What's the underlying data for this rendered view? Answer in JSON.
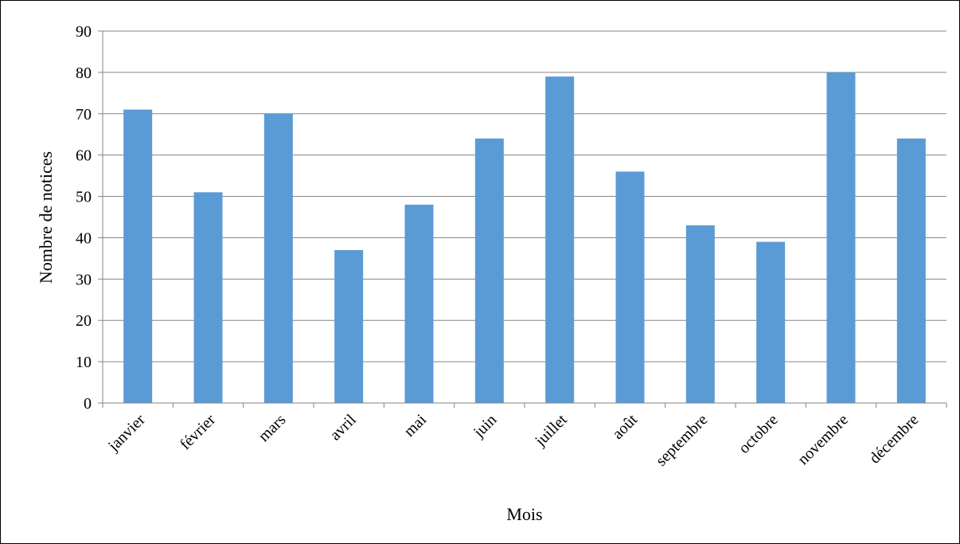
{
  "chart_data": {
    "type": "bar",
    "categories": [
      "janvier",
      "février",
      "mars",
      "avril",
      "mai",
      "juin",
      "juillet",
      "août",
      "septembre",
      "octobre",
      "novembre",
      "décembre"
    ],
    "values": [
      71,
      51,
      70,
      37,
      48,
      64,
      79,
      56,
      43,
      39,
      80,
      64
    ],
    "title": "",
    "xlabel": "Mois",
    "ylabel": "Nombre de notices",
    "ylim": [
      0,
      90
    ],
    "yticks": [
      "0",
      "10",
      "20",
      "30",
      "40",
      "50",
      "60",
      "70",
      "80",
      "90"
    ],
    "grid": true,
    "legend": "none",
    "bar_color": "#5b9bd5",
    "grid_color": "#868686"
  }
}
